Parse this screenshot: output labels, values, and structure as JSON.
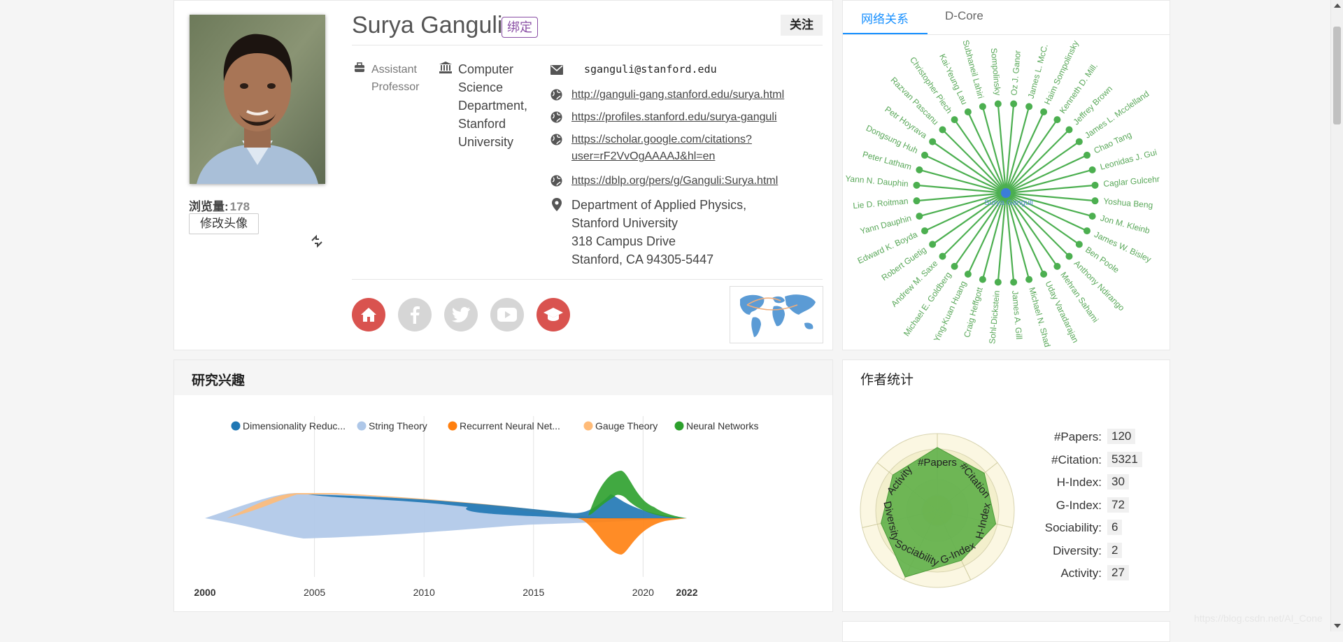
{
  "profile": {
    "name": "Surya Ganguli",
    "bind_label": "绑定",
    "follow_label": "关注",
    "views_label": "浏览量:",
    "views_count": "178",
    "change_avatar_label": "修改头像",
    "position": [
      "Assistant",
      "Professor"
    ],
    "organization": [
      "Computer",
      "Science",
      "Department,",
      "Stanford",
      "University"
    ],
    "email": "sganguli@stanford.edu",
    "links": [
      {
        "text": "http://ganguli-gang.stanford.edu/surya.html"
      },
      {
        "text": "https://profiles.stanford.edu/surya-ganguli"
      },
      {
        "text_line1": "https://scholar.google.com/citations?",
        "text_line2": "user=rF2VvOgAAAAJ&hl=en"
      },
      {
        "text": "https://dblp.org/pers/g/Ganguli:Surya.html"
      }
    ],
    "address": [
      "Department of Applied Physics,",
      "Stanford University",
      "318 Campus Drive",
      "Stanford, CA 94305-5447"
    ],
    "social": [
      {
        "name": "homepage",
        "color": "#d9534f",
        "active": true
      },
      {
        "name": "facebook",
        "color": "#d6d6d6",
        "active": false
      },
      {
        "name": "twitter",
        "color": "#d6d6d6",
        "active": false
      },
      {
        "name": "youtube",
        "color": "#d6d6d6",
        "active": false
      },
      {
        "name": "scholar",
        "color": "#d9534f",
        "active": true
      }
    ]
  },
  "network": {
    "tabs": [
      {
        "label": "网络关系",
        "active": true
      },
      {
        "label": "D-Core",
        "active": false
      }
    ],
    "center": "Surya Ganguli",
    "color": "#4caf50",
    "nodes": [
      "Oz J. Ganor",
      "James L. McC.",
      "Haim Sompolinsky",
      "Kenneth D. Mill.",
      "Jeffrey Brown",
      "James L. Mcclelland",
      "Chao Tang",
      "Leonidas J. Gui",
      "Caglar Gulcehr",
      "Yoshua Beng",
      "Jon M. Kleinb",
      "James W. Bisley",
      "Ben Poole",
      "Anthony Ndirango",
      "Mehran Sahami",
      "Uday Varadarajan",
      "Michael N. Shad",
      "James A. Gill",
      "Sohl-Dickstein",
      "Craig Heffgott",
      "Ying-Kuan Huang",
      "Michael E. Goldberg",
      "Andrew M. Saxe",
      "Robert Guetig",
      "Edward K. Boyda",
      "Yann Dauphin",
      "Lie D. Roitman",
      "Yann N. Dauphin",
      "Peter Latham",
      "Dongsung Huh",
      "Petr Hoyrava",
      "Razvan Pascanu",
      "Christopher Piech",
      "Kai-Yeung Lau",
      "Subhaneil Lahiri",
      "Sompolinsky"
    ]
  },
  "interest": {
    "title": "研究兴趣"
  },
  "chart_data": {
    "type": "area",
    "legend": [
      {
        "name": "Dimensionality Reduc...",
        "color": "#1f77b4"
      },
      {
        "name": "String Theory",
        "color": "#aec7e8"
      },
      {
        "name": "Recurrent Neural Net...",
        "color": "#ff7f0e"
      },
      {
        "name": "Gauge Theory",
        "color": "#ffbb78"
      },
      {
        "name": "Neural Networks",
        "color": "#2ca02c"
      }
    ],
    "x_ticks": [
      "2000",
      "2005",
      "2010",
      "2015",
      "2020",
      "2022"
    ],
    "xlim": [
      2000,
      2022
    ],
    "grid": true,
    "legend_position": "top"
  },
  "stats": {
    "title": "作者统计",
    "rows": [
      {
        "label": "#Papers:",
        "value": "120"
      },
      {
        "label": "#Citation:",
        "value": "5321"
      },
      {
        "label": "H-Index:",
        "value": "30"
      },
      {
        "label": "G-Index:",
        "value": "72"
      },
      {
        "label": "Sociability:",
        "value": "6"
      },
      {
        "label": "Diversity:",
        "value": "2"
      },
      {
        "label": "Activity:",
        "value": "27"
      }
    ],
    "radar_axes": [
      "#Papers",
      "#Citation",
      "H-Index",
      "G-Index",
      "Sociability",
      "Diversity",
      "Activity"
    ]
  },
  "watermark": "https://blog.csdn.net/AI_Cone"
}
